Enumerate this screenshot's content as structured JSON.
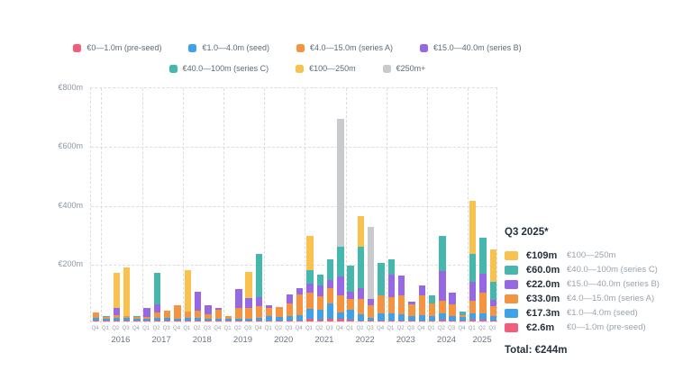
{
  "colors": {
    "pre_seed": "#F25D7C",
    "seed": "#3FA2E8",
    "series_a": "#F59440",
    "series_b": "#9668E4",
    "series_c": "#45B7AC",
    "m100_250": "#F9C24F",
    "m250_plus": "#C9CACE"
  },
  "legend": {
    "row1": [
      {
        "label": "€0—1.0m (pre-seed)",
        "color_key": "pre_seed"
      },
      {
        "label": "€1.0—4.0m (seed)",
        "color_key": "seed"
      },
      {
        "label": "€4.0—15.0m (series A)",
        "color_key": "series_a"
      },
      {
        "label": "€15.0—40.0m (series B)",
        "color_key": "series_b"
      }
    ],
    "row2": [
      {
        "label": "€40.0—100m (series C)",
        "color_key": "series_c"
      },
      {
        "label": "€100—250m",
        "color_key": "m100_250"
      },
      {
        "label": "€250m+",
        "color_key": "m250_plus"
      }
    ]
  },
  "chart_data": {
    "type": "bar",
    "stacked": true,
    "ylabel": "",
    "xlabel": "",
    "ylim": [
      0,
      800
    ],
    "yticks": [
      {
        "value": 800,
        "label": "€800m"
      },
      {
        "value": 600,
        "label": "€600m"
      },
      {
        "value": 400,
        "label": "€400m"
      },
      {
        "value": 200,
        "label": "€200m"
      }
    ],
    "quarters": [
      "Q4",
      "Q1",
      "Q2",
      "Q3",
      "Q4",
      "Q1",
      "Q2",
      "Q3",
      "Q4",
      "Q1",
      "Q2",
      "Q3",
      "Q4",
      "Q1",
      "Q2",
      "Q3",
      "Q4",
      "Q1",
      "Q2",
      "Q3",
      "Q4",
      "Q1",
      "Q2",
      "Q3",
      "Q4",
      "Q1",
      "Q2",
      "Q3",
      "Q4",
      "Q1",
      "Q2",
      "Q3",
      "Q4",
      "Q1",
      "Q2",
      "Q3",
      "Q4",
      "Q1",
      "Q2",
      "Q3"
    ],
    "years": [
      {
        "label": "2016",
        "start": 1,
        "count": 4
      },
      {
        "label": "2017",
        "start": 5,
        "count": 4
      },
      {
        "label": "2018",
        "start": 9,
        "count": 4
      },
      {
        "label": "2019",
        "start": 13,
        "count": 4
      },
      {
        "label": "2020",
        "start": 17,
        "count": 4
      },
      {
        "label": "2021",
        "start": 21,
        "count": 4
      },
      {
        "label": "2022",
        "start": 25,
        "count": 4
      },
      {
        "label": "2023",
        "start": 29,
        "count": 4
      },
      {
        "label": "2024",
        "start": 33,
        "count": 4
      },
      {
        "label": "2025",
        "start": 37,
        "count": 3
      }
    ],
    "series": [
      {
        "name": "€0—1.0m (pre-seed)",
        "color_key": "pre_seed",
        "values": [
          2,
          2,
          3,
          2,
          2,
          2,
          3,
          2,
          2,
          2,
          2,
          2,
          2,
          2,
          2,
          2,
          2,
          3,
          3,
          3,
          3,
          8,
          5,
          10,
          8,
          5,
          4,
          3,
          4,
          4,
          4,
          3,
          3,
          3,
          5,
          3,
          2,
          7,
          5,
          2.6
        ]
      },
      {
        "name": "€1.0—4.0m (seed)",
        "color_key": "seed",
        "values": [
          10,
          8,
          10,
          10,
          8,
          8,
          10,
          10,
          8,
          10,
          10,
          8,
          8,
          6,
          8,
          8,
          10,
          15,
          12,
          15,
          20,
          35,
          35,
          50,
          22,
          36,
          22,
          10,
          25,
          25,
          22,
          15,
          20,
          17,
          22,
          15,
          13,
          20,
          22,
          17.3
        ]
      },
      {
        "name": "€4.0—15.0m (series A)",
        "color_key": "series_a",
        "values": [
          20,
          5,
          10,
          8,
          6,
          4,
          17,
          26,
          45,
          22,
          24,
          15,
          30,
          12,
          35,
          35,
          40,
          27,
          33,
          44,
          70,
          56,
          46,
          52,
          60,
          37,
          51,
          41,
          60,
          55,
          62,
          40,
          65,
          40,
          45,
          40,
          8,
          43,
          71,
          33
        ]
      },
      {
        "name": "€15.0—40.0m (series B)",
        "color_key": "series_b",
        "values": [
          0,
          0,
          23,
          0,
          0,
          32,
          27,
          0,
          0,
          0,
          65,
          30,
          5,
          0,
          65,
          35,
          30,
          10,
          0,
          30,
          20,
          31,
          36,
          30,
          63,
          22,
          38,
          24,
          0,
          75,
          67,
          10,
          35,
          0,
          100,
          40,
          0,
          64,
          66,
          22
        ]
      },
      {
        "name": "€40.0—100m (series C)",
        "color_key": "series_c",
        "values": [
          0,
          4,
          0,
          0,
          4,
          0,
          108,
          0,
          0,
          0,
          0,
          0,
          0,
          0,
          0,
          0,
          147,
          0,
          0,
          0,
          0,
          45,
          39,
          70,
          100,
          90,
          140,
          0,
          109,
          53,
          0,
          0,
          0,
          30,
          120,
          0,
          12,
          97,
          121,
          60
        ]
      },
      {
        "name": "€100—250m",
        "color_key": "m100_250",
        "values": [
          0,
          0,
          119,
          164,
          0,
          0,
          0,
          0,
          0,
          140,
          0,
          0,
          0,
          0,
          0,
          88,
          0,
          0,
          0,
          0,
          0,
          115,
          0,
          0,
          0,
          0,
          105,
          0,
          0,
          0,
          0,
          0,
          0,
          0,
          0,
          0,
          0,
          179,
          0,
          109
        ]
      },
      {
        "name": "€250m+",
        "color_key": "m250_plus",
        "values": [
          0,
          0,
          0,
          0,
          0,
          0,
          0,
          0,
          0,
          0,
          0,
          0,
          0,
          0,
          0,
          0,
          0,
          0,
          0,
          0,
          0,
          0,
          0,
          0,
          437,
          0,
          0,
          244,
          0,
          0,
          0,
          0,
          0,
          0,
          0,
          0,
          0,
          0,
          0,
          0
        ]
      }
    ]
  },
  "panel": {
    "title": "Q3 2025*",
    "rows": [
      {
        "value": "€109m",
        "label": "€100—250m",
        "color_key": "m100_250"
      },
      {
        "value": "€60.0m",
        "label": "€40.0—100m (series C)",
        "color_key": "series_c"
      },
      {
        "value": "€22.0m",
        "label": "€15.0—40.0m (series B)",
        "color_key": "series_b"
      },
      {
        "value": "€33.0m",
        "label": "€4.0—15.0m (series A)",
        "color_key": "series_a"
      },
      {
        "value": "€17.3m",
        "label": "€1.0—4.0m (seed)",
        "color_key": "seed"
      },
      {
        "value": "€2.6m",
        "label": "€0—1.0m (pre-seed)",
        "color_key": "pre_seed"
      }
    ],
    "total": "Total: €244m"
  }
}
